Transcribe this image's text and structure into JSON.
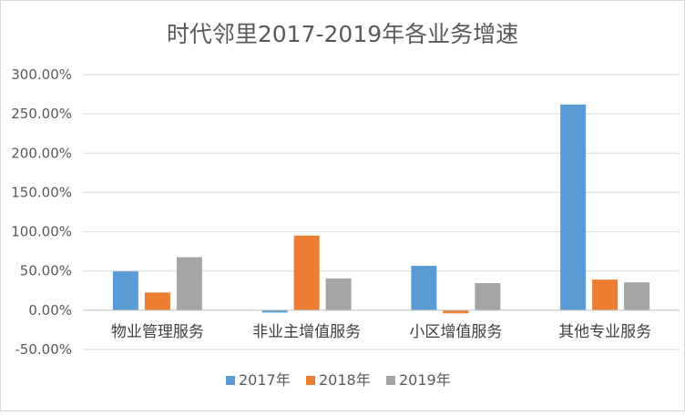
{
  "chart_data": {
    "type": "bar",
    "title": "时代邻里2017-2019年各业务增速",
    "xlabel": "",
    "ylabel": "",
    "categories": [
      "物业管理服务",
      "非业主增值服务",
      "小区增值服务",
      "其他专业服务"
    ],
    "series": [
      {
        "name": "2017年",
        "color": "#5b9bd5",
        "values": [
          49.5,
          -3.0,
          56.5,
          262.0
        ]
      },
      {
        "name": "2018年",
        "color": "#ed7d31",
        "values": [
          22.5,
          95.0,
          -4.0,
          39.0
        ]
      },
      {
        "name": "2019年",
        "color": "#a5a5a5",
        "values": [
          67.5,
          40.5,
          34.5,
          35.5
        ]
      }
    ],
    "ylim": [
      -50,
      300
    ],
    "yticks": [
      300,
      250,
      200,
      150,
      100,
      50,
      0,
      -50
    ],
    "ytick_labels": [
      "300.00%",
      "250.00%",
      "200.00%",
      "150.00%",
      "100.00%",
      "50.00%",
      "0.00%",
      "-50.00%"
    ],
    "grid": true,
    "legend_position": "bottom"
  }
}
